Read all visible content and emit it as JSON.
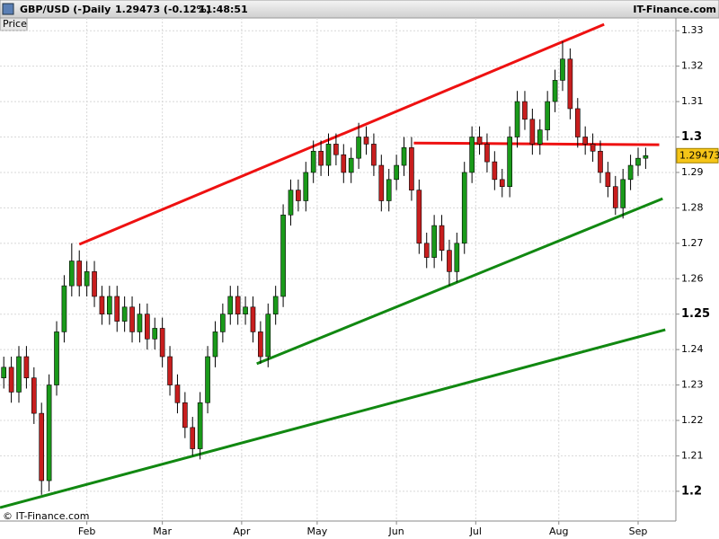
{
  "header": {
    "symbol": "GBP/USD (-)",
    "period": "Daily",
    "quote": "1.29473 (-0.12%)",
    "time": "11:48:51",
    "brand": "IT-Finance.com"
  },
  "chart_data": {
    "type": "candlestick",
    "panel_label": "Price",
    "watermark": "© IT-Finance.com",
    "last_price_label": "1.29473",
    "up_color": "#1a9a1a",
    "down_color": "#c81e1e",
    "grid": true,
    "xlim": [
      -1,
      178
    ],
    "ylim": [
      1.1916,
      1.3336
    ],
    "xticks": [
      {
        "value": 22,
        "label": "Feb"
      },
      {
        "value": 42,
        "label": "Mar"
      },
      {
        "value": 63,
        "label": "Apr"
      },
      {
        "value": 83,
        "label": "May"
      },
      {
        "value": 104,
        "label": "Jun"
      },
      {
        "value": 125,
        "label": "Jul"
      },
      {
        "value": 147,
        "label": "Aug"
      },
      {
        "value": 168,
        "label": "Sep"
      }
    ],
    "yticks": [
      1.2,
      1.21,
      1.22,
      1.23,
      1.24,
      1.25,
      1.26,
      1.27,
      1.28,
      1.29,
      1.3,
      1.31,
      1.32,
      1.33
    ],
    "x": [
      0,
      2,
      4,
      6,
      8,
      10,
      12,
      14,
      16,
      18,
      20,
      22,
      24,
      26,
      28,
      30,
      32,
      34,
      36,
      38,
      40,
      42,
      44,
      46,
      48,
      50,
      52,
      54,
      56,
      58,
      60,
      62,
      64,
      66,
      68,
      70,
      72,
      74,
      76,
      78,
      80,
      82,
      84,
      86,
      88,
      90,
      92,
      94,
      96,
      98,
      100,
      102,
      104,
      106,
      108,
      110,
      112,
      114,
      116,
      118,
      120,
      122,
      124,
      126,
      128,
      130,
      132,
      134,
      136,
      138,
      140,
      142,
      144,
      146,
      148,
      150,
      152,
      154,
      156,
      158,
      160,
      162,
      164,
      166,
      168,
      170
    ],
    "open": [
      1.232,
      1.235,
      1.228,
      1.238,
      1.232,
      1.222,
      1.203,
      1.23,
      1.245,
      1.258,
      1.265,
      1.258,
      1.262,
      1.255,
      1.25,
      1.255,
      1.248,
      1.252,
      1.245,
      1.25,
      1.243,
      1.246,
      1.238,
      1.23,
      1.225,
      1.218,
      1.212,
      1.225,
      1.238,
      1.245,
      1.25,
      1.255,
      1.25,
      1.252,
      1.245,
      1.238,
      1.25,
      1.255,
      1.278,
      1.285,
      1.282,
      1.29,
      1.296,
      1.292,
      1.298,
      1.295,
      1.29,
      1.294,
      1.3,
      1.298,
      1.292,
      1.282,
      1.288,
      1.292,
      1.297,
      1.285,
      1.27,
      1.266,
      1.275,
      1.268,
      1.262,
      1.27,
      1.29,
      1.3,
      1.298,
      1.293,
      1.288,
      1.286,
      1.3,
      1.31,
      1.305,
      1.298,
      1.302,
      1.31,
      1.316,
      1.322,
      1.308,
      1.3,
      1.298,
      1.296,
      1.29,
      1.286,
      1.28,
      1.288,
      1.292,
      1.294
    ],
    "high": [
      1.238,
      1.238,
      1.241,
      1.241,
      1.235,
      1.225,
      1.233,
      1.248,
      1.261,
      1.27,
      1.268,
      1.265,
      1.265,
      1.258,
      1.258,
      1.258,
      1.255,
      1.255,
      1.253,
      1.253,
      1.249,
      1.249,
      1.241,
      1.233,
      1.228,
      1.221,
      1.228,
      1.241,
      1.248,
      1.253,
      1.258,
      1.258,
      1.255,
      1.255,
      1.248,
      1.253,
      1.258,
      1.281,
      1.288,
      1.288,
      1.293,
      1.299,
      1.299,
      1.301,
      1.301,
      1.298,
      1.297,
      1.304,
      1.303,
      1.301,
      1.295,
      1.291,
      1.295,
      1.3,
      1.3,
      1.288,
      1.273,
      1.278,
      1.278,
      1.271,
      1.273,
      1.293,
      1.303,
      1.303,
      1.301,
      1.296,
      1.291,
      1.303,
      1.313,
      1.313,
      1.308,
      1.305,
      1.313,
      1.319,
      1.327,
      1.325,
      1.311,
      1.303,
      1.301,
      1.299,
      1.293,
      1.289,
      1.291,
      1.295,
      1.297,
      1.297
    ],
    "low": [
      1.229,
      1.225,
      1.225,
      1.229,
      1.219,
      1.199,
      1.2,
      1.227,
      1.242,
      1.255,
      1.255,
      1.255,
      1.252,
      1.247,
      1.247,
      1.245,
      1.245,
      1.242,
      1.242,
      1.24,
      1.24,
      1.235,
      1.227,
      1.222,
      1.215,
      1.21,
      1.209,
      1.222,
      1.235,
      1.242,
      1.247,
      1.247,
      1.247,
      1.242,
      1.236,
      1.235,
      1.247,
      1.252,
      1.275,
      1.279,
      1.279,
      1.287,
      1.289,
      1.289,
      1.292,
      1.287,
      1.287,
      1.291,
      1.295,
      1.289,
      1.279,
      1.279,
      1.285,
      1.289,
      1.282,
      1.267,
      1.263,
      1.263,
      1.265,
      1.258,
      1.259,
      1.267,
      1.287,
      1.295,
      1.29,
      1.285,
      1.283,
      1.283,
      1.297,
      1.302,
      1.295,
      1.295,
      1.299,
      1.307,
      1.313,
      1.305,
      1.297,
      1.295,
      1.293,
      1.287,
      1.283,
      1.278,
      1.277,
      1.285,
      1.289,
      1.291
    ],
    "close": [
      1.235,
      1.228,
      1.238,
      1.232,
      1.222,
      1.203,
      1.23,
      1.245,
      1.258,
      1.265,
      1.258,
      1.262,
      1.255,
      1.25,
      1.255,
      1.248,
      1.252,
      1.245,
      1.25,
      1.243,
      1.246,
      1.238,
      1.23,
      1.225,
      1.218,
      1.212,
      1.225,
      1.238,
      1.245,
      1.25,
      1.255,
      1.25,
      1.252,
      1.245,
      1.238,
      1.25,
      1.255,
      1.278,
      1.285,
      1.282,
      1.29,
      1.296,
      1.292,
      1.298,
      1.295,
      1.29,
      1.294,
      1.3,
      1.298,
      1.292,
      1.282,
      1.288,
      1.292,
      1.297,
      1.285,
      1.27,
      1.266,
      1.275,
      1.268,
      1.262,
      1.27,
      1.29,
      1.3,
      1.298,
      1.293,
      1.288,
      1.286,
      1.3,
      1.31,
      1.305,
      1.298,
      1.302,
      1.31,
      1.316,
      1.322,
      1.308,
      1.3,
      1.298,
      1.296,
      1.29,
      1.286,
      1.28,
      1.288,
      1.292,
      1.294,
      1.29473
    ],
    "trendlines": [
      {
        "color": "#ee1111",
        "x": [
          20,
          159
        ],
        "y": [
          1.2697,
          1.3318
        ]
      },
      {
        "color": "#ee1111",
        "x": [
          108.6,
          173.6
        ],
        "y": [
          1.2983,
          1.2978
        ]
      },
      {
        "color": "#118811",
        "x": [
          67,
          174.5
        ],
        "y": [
          1.236,
          1.2826
        ]
      },
      {
        "color": "#118811",
        "x": [
          -1,
          175.2
        ],
        "y": [
          1.1954,
          1.2456
        ]
      }
    ]
  }
}
